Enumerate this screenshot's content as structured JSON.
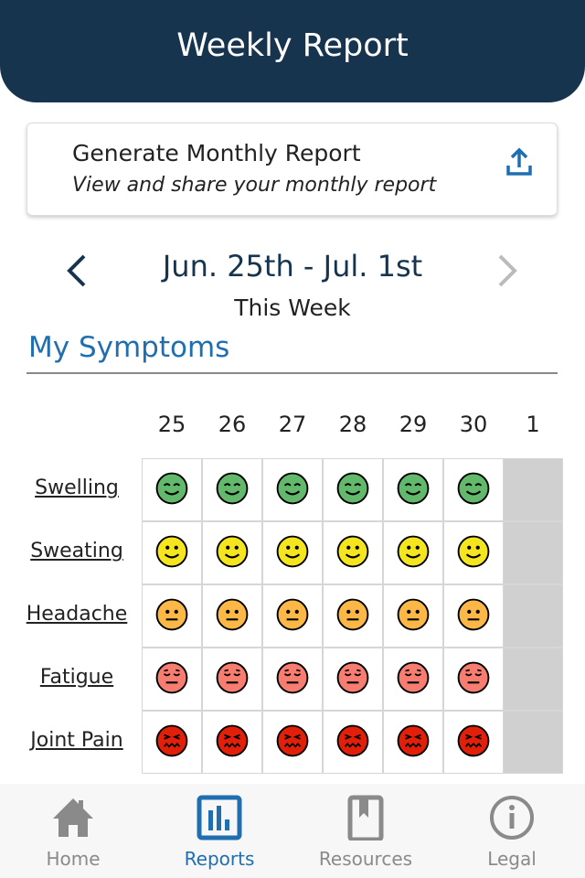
{
  "header": {
    "title": "Weekly Report"
  },
  "monthly_card": {
    "title": "Generate Monthly Report",
    "subtitle": "View and share your monthly report",
    "icon": "share-upload-icon"
  },
  "week_nav": {
    "range": "Jun. 25th - Jul. 1st",
    "label": "This Week"
  },
  "section": {
    "title": "My Symptoms"
  },
  "days": [
    "25",
    "26",
    "27",
    "28",
    "29",
    "30",
    "1"
  ],
  "symptoms": [
    {
      "name": "Swelling",
      "levels": [
        1,
        1,
        1,
        1,
        1,
        1,
        null
      ]
    },
    {
      "name": "Sweating",
      "levels": [
        2,
        2,
        2,
        2,
        2,
        2,
        null
      ]
    },
    {
      "name": "Headache",
      "levels": [
        3,
        3,
        3,
        3,
        3,
        3,
        null
      ]
    },
    {
      "name": "Fatigue",
      "levels": [
        4,
        4,
        4,
        4,
        4,
        4,
        null
      ]
    },
    {
      "name": "Joint Pain",
      "levels": [
        5,
        5,
        5,
        5,
        5,
        5,
        null
      ]
    }
  ],
  "level_colors": {
    "1": "#63b96b",
    "2": "#f5e51e",
    "3": "#fbb847",
    "4": "#f67d70",
    "5": "#e21f09"
  },
  "bottom_nav": [
    {
      "label": "Home",
      "icon": "home-icon",
      "active": false
    },
    {
      "label": "Reports",
      "icon": "reports-icon",
      "active": true
    },
    {
      "label": "Resources",
      "icon": "book-icon",
      "active": false
    },
    {
      "label": "Legal",
      "icon": "info-icon",
      "active": false
    }
  ],
  "colors": {
    "primary": "#17344f",
    "accent": "#1f6fb0",
    "inactive": "#8a8a8a"
  }
}
